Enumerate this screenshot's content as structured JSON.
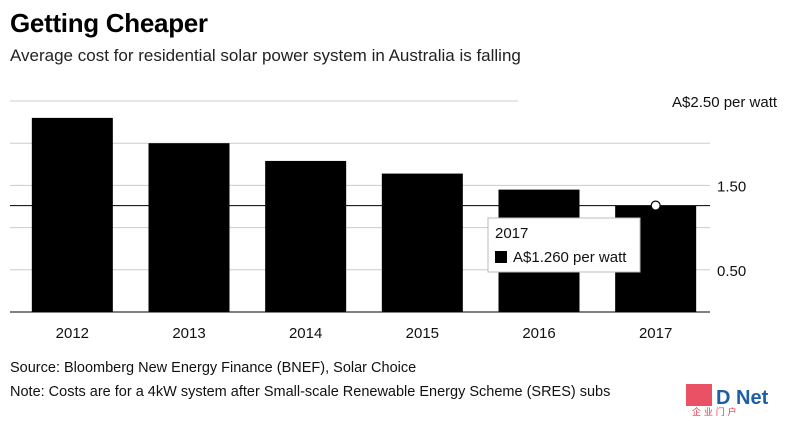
{
  "header": {
    "title": "Getting Cheaper",
    "subtitle": "Average cost for residential solar power system in Australia is falling"
  },
  "chart_data": {
    "type": "bar",
    "categories": [
      "2012",
      "2013",
      "2014",
      "2015",
      "2016",
      "2017"
    ],
    "values": [
      2.3,
      2.0,
      1.79,
      1.64,
      1.45,
      1.26
    ],
    "ylim": [
      0,
      2.5
    ],
    "yticks": [
      {
        "value": 2.5,
        "label": "A$2.50 per watt"
      },
      {
        "value": 2.0,
        "label": ""
      },
      {
        "value": 1.5,
        "label": "1.50"
      },
      {
        "value": 1.0,
        "label": ""
      },
      {
        "value": 0.5,
        "label": "0.50"
      },
      {
        "value": 0.0,
        "label": ""
      }
    ],
    "grid": true,
    "bar_color": "#000000",
    "grid_color": "#cccccc",
    "tooltip": {
      "category_index": 5,
      "title": "2017",
      "label": "A$1.260 per watt"
    }
  },
  "footer": {
    "source": "Source: Bloomberg New Energy Finance (BNEF), Solar Choice",
    "note": "Note: Costs are for a 4kW system after Small-scale Renewable Energy Scheme (SRES) subs"
  },
  "watermark": {
    "text": "D Net",
    "sub": "企 业 门 户"
  }
}
